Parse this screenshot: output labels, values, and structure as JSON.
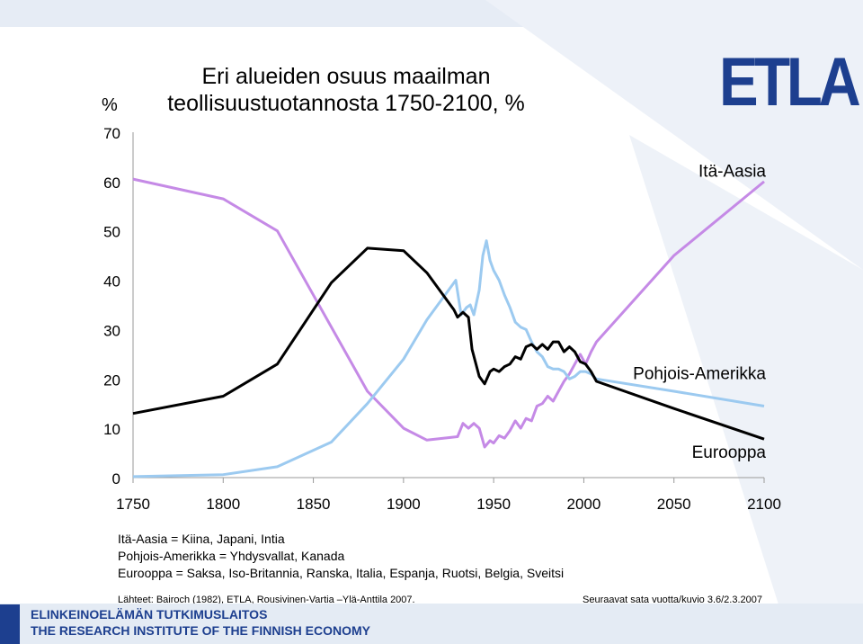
{
  "logo_text": "ETLA",
  "title_line1": "Eri alueiden osuus maailman",
  "title_line2": "teollisuustuotannosta 1750-2100, %",
  "y_unit": "%",
  "notes": [
    "Itä-Aasia = Kiina, Japani, Intia",
    "Pohjois-Amerikka = Yhdysvallat, Kanada",
    "Eurooppa = Saksa, Iso-Britannia, Ranska, Italia, Espanja, Ruotsi, Belgia, Sveitsi"
  ],
  "source": "Lähteet: Bairoch (1982), ETLA, Rousivinen-Vartia –Ylä-Anttila 2007.",
  "series_ref": "Seuraavat sata vuotta/kuvio 3.6/2.3.2007",
  "footer_fi": "ELINKEINOELÄMÄN TUTKIMUSLAITOS",
  "footer_en": "THE RESEARCH INSTITUTE OF THE FINNISH ECONOMY",
  "colors": {
    "ita_aasia": "#c58ae6",
    "pohjois_amerikka": "#9ccaf0",
    "eurooppa": "#000000",
    "brand": "#1d3f8f"
  },
  "chart_data": {
    "type": "line",
    "xlim": [
      1750,
      2100
    ],
    "ylim": [
      0,
      70
    ],
    "x_ticks": [
      1750,
      1800,
      1850,
      1900,
      1950,
      2000,
      2050,
      2100
    ],
    "y_ticks": [
      0,
      10,
      20,
      30,
      40,
      50,
      60,
      70
    ],
    "grid": false,
    "series": [
      {
        "name": "Itä-Aasia",
        "points": [
          [
            1750,
            60.5
          ],
          [
            1800,
            56.5
          ],
          [
            1830,
            50
          ],
          [
            1880,
            17.5
          ],
          [
            1900,
            10
          ],
          [
            1913,
            7.6
          ],
          [
            1930,
            8.3
          ],
          [
            1933,
            11
          ],
          [
            1936,
            10
          ],
          [
            1939,
            11
          ],
          [
            1942,
            10
          ],
          [
            1945,
            6.2
          ],
          [
            1948,
            7.5
          ],
          [
            1950,
            7
          ],
          [
            1953,
            8.5
          ],
          [
            1956,
            8
          ],
          [
            1959,
            9.5
          ],
          [
            1962,
            11.5
          ],
          [
            1965,
            10
          ],
          [
            1968,
            12
          ],
          [
            1971,
            11.5
          ],
          [
            1974,
            14.5
          ],
          [
            1977,
            15
          ],
          [
            1980,
            16.5
          ],
          [
            1983,
            15.5
          ],
          [
            1986,
            17.5
          ],
          [
            1989,
            19.5
          ],
          [
            1992,
            21
          ],
          [
            1995,
            23
          ],
          [
            1998,
            25
          ],
          [
            2001,
            23
          ],
          [
            2004,
            25.5
          ],
          [
            2007,
            27.5
          ],
          [
            2050,
            45
          ],
          [
            2100,
            60
          ]
        ]
      },
      {
        "name": "Pohjois-Amerikka",
        "points": [
          [
            1750,
            0.2
          ],
          [
            1800,
            0.6
          ],
          [
            1830,
            2.2
          ],
          [
            1860,
            7.2
          ],
          [
            1880,
            15
          ],
          [
            1900,
            24
          ],
          [
            1913,
            32
          ],
          [
            1929,
            40
          ],
          [
            1932,
            33
          ],
          [
            1935,
            34.5
          ],
          [
            1937,
            35
          ],
          [
            1939,
            33
          ],
          [
            1942,
            38
          ],
          [
            1944,
            45
          ],
          [
            1946,
            48
          ],
          [
            1948,
            44
          ],
          [
            1950,
            42
          ],
          [
            1953,
            40
          ],
          [
            1956,
            37
          ],
          [
            1959,
            34.5
          ],
          [
            1962,
            31.5
          ],
          [
            1965,
            30.5
          ],
          [
            1968,
            30
          ],
          [
            1971,
            27.5
          ],
          [
            1974,
            25.5
          ],
          [
            1977,
            24.5
          ],
          [
            1980,
            22.5
          ],
          [
            1983,
            22
          ],
          [
            1986,
            22
          ],
          [
            1989,
            21.5
          ],
          [
            1992,
            20
          ],
          [
            1995,
            20.5
          ],
          [
            1998,
            21.5
          ],
          [
            2001,
            21.5
          ],
          [
            2004,
            21
          ],
          [
            2007,
            20
          ],
          [
            2050,
            17.5
          ],
          [
            2100,
            14.5
          ]
        ]
      },
      {
        "name": "Eurooppa",
        "points": [
          [
            1750,
            13
          ],
          [
            1800,
            16.5
          ],
          [
            1830,
            23
          ],
          [
            1860,
            39.5
          ],
          [
            1880,
            46.5
          ],
          [
            1900,
            46
          ],
          [
            1913,
            41.5
          ],
          [
            1928,
            34
          ],
          [
            1930,
            32.5
          ],
          [
            1933,
            33.5
          ],
          [
            1936,
            32.5
          ],
          [
            1938,
            26
          ],
          [
            1942,
            20.5
          ],
          [
            1945,
            19
          ],
          [
            1948,
            21.5
          ],
          [
            1950,
            22
          ],
          [
            1953,
            21.5
          ],
          [
            1956,
            22.5
          ],
          [
            1959,
            23
          ],
          [
            1962,
            24.5
          ],
          [
            1965,
            24
          ],
          [
            1968,
            26.5
          ],
          [
            1971,
            27
          ],
          [
            1974,
            26
          ],
          [
            1977,
            27
          ],
          [
            1980,
            26
          ],
          [
            1983,
            27.5
          ],
          [
            1986,
            27.5
          ],
          [
            1989,
            25.5
          ],
          [
            1992,
            26.5
          ],
          [
            1995,
            25.5
          ],
          [
            1998,
            23.5
          ],
          [
            2001,
            23
          ],
          [
            2004,
            21.5
          ],
          [
            2007,
            19.5
          ],
          [
            2050,
            14
          ],
          [
            2100,
            7.8
          ]
        ]
      }
    ],
    "annotations": [
      "Itä-Aasia",
      "Pohjois-Amerikka",
      "Eurooppa"
    ]
  }
}
